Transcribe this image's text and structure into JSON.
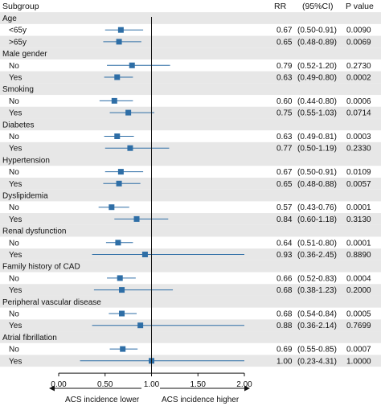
{
  "chart_data": {
    "type": "forest",
    "headers": {
      "subgroup": "Subgroup",
      "rr": "RR",
      "ci": "(95%CI)",
      "p": "P value"
    },
    "x_axis": {
      "range": [
        0,
        2
      ],
      "ticks": [
        0,
        0.5,
        1,
        1.5,
        2
      ],
      "tick_labels": [
        "0.00",
        "0.50",
        "1.00",
        "1.50",
        "2.00"
      ],
      "reference_line": 1
    },
    "direction_labels": {
      "left": "ACS incidence lower",
      "right": "ACS incidence higher"
    },
    "colors": {
      "marker": "#2e6ea6",
      "band": "#e7e7e7",
      "axis": "#111111"
    },
    "groups": [
      {
        "name": "Age",
        "rows": [
          {
            "label": "<65y",
            "rr": 0.67,
            "lo": 0.5,
            "hi": 0.91,
            "rr_text": "0.67",
            "ci_text": "(0.50-0.91)",
            "p_text": "0.0090"
          },
          {
            "label": ">65y",
            "rr": 0.65,
            "lo": 0.48,
            "hi": 0.89,
            "rr_text": "0.65",
            "ci_text": "(0.48-0.89)",
            "p_text": "0.0069"
          }
        ]
      },
      {
        "name": "Male gender",
        "rows": [
          {
            "label": "No",
            "rr": 0.79,
            "lo": 0.52,
            "hi": 1.2,
            "rr_text": "0.79",
            "ci_text": "(0.52-1.20)",
            "p_text": "0.2730"
          },
          {
            "label": "Yes",
            "rr": 0.63,
            "lo": 0.49,
            "hi": 0.8,
            "rr_text": "0.63",
            "ci_text": "(0.49-0.80)",
            "p_text": "0.0002"
          }
        ]
      },
      {
        "name": "Smoking",
        "rows": [
          {
            "label": "No",
            "rr": 0.6,
            "lo": 0.44,
            "hi": 0.8,
            "rr_text": "0.60",
            "ci_text": "(0.44-0.80)",
            "p_text": "0.0006"
          },
          {
            "label": "Yes",
            "rr": 0.75,
            "lo": 0.55,
            "hi": 1.03,
            "rr_text": "0.75",
            "ci_text": "(0.55-1.03)",
            "p_text": "0.0714"
          }
        ]
      },
      {
        "name": "Diabetes",
        "rows": [
          {
            "label": "No",
            "rr": 0.63,
            "lo": 0.49,
            "hi": 0.81,
            "rr_text": "0.63",
            "ci_text": "(0.49-0.81)",
            "p_text": "0.0003"
          },
          {
            "label": "Yes",
            "rr": 0.77,
            "lo": 0.5,
            "hi": 1.19,
            "rr_text": "0.77",
            "ci_text": "(0.50-1.19)",
            "p_text": "0.2330"
          }
        ]
      },
      {
        "name": "Hypertension",
        "rows": [
          {
            "label": "No",
            "rr": 0.67,
            "lo": 0.5,
            "hi": 0.91,
            "rr_text": "0.67",
            "ci_text": "(0.50-0.91)",
            "p_text": "0.0109"
          },
          {
            "label": "Yes",
            "rr": 0.65,
            "lo": 0.48,
            "hi": 0.88,
            "rr_text": "0.65",
            "ci_text": "(0.48-0.88)",
            "p_text": "0.0057"
          }
        ]
      },
      {
        "name": "Dyslipidemia",
        "rows": [
          {
            "label": "No",
            "rr": 0.57,
            "lo": 0.43,
            "hi": 0.76,
            "rr_text": "0.57",
            "ci_text": "(0.43-0.76)",
            "p_text": "0.0001"
          },
          {
            "label": "Yes",
            "rr": 0.84,
            "lo": 0.6,
            "hi": 1.18,
            "rr_text": "0.84",
            "ci_text": "(0.60-1.18)",
            "p_text": "0.3130"
          }
        ]
      },
      {
        "name": "Renal dysfunction",
        "rows": [
          {
            "label": "No",
            "rr": 0.64,
            "lo": 0.51,
            "hi": 0.8,
            "rr_text": "0.64",
            "ci_text": "(0.51-0.80)",
            "p_text": "0.0001"
          },
          {
            "label": "Yes",
            "rr": 0.93,
            "lo": 0.36,
            "hi": 2.45,
            "rr_text": "0.93",
            "ci_text": "(0.36-2.45)",
            "p_text": "0.8890"
          }
        ]
      },
      {
        "name": "Family history of CAD",
        "rows": [
          {
            "label": "No",
            "rr": 0.66,
            "lo": 0.52,
            "hi": 0.83,
            "rr_text": "0.66",
            "ci_text": "(0.52-0.83)",
            "p_text": "0.0004"
          },
          {
            "label": "Yes",
            "rr": 0.68,
            "lo": 0.38,
            "hi": 1.23,
            "rr_text": "0.68",
            "ci_text": "(0.38-1.23)",
            "p_text": "0.2000"
          }
        ]
      },
      {
        "name": "Peripheral vascular disease",
        "rows": [
          {
            "label": "No",
            "rr": 0.68,
            "lo": 0.54,
            "hi": 0.84,
            "rr_text": "0.68",
            "ci_text": "(0.54-0.84)",
            "p_text": "0.0005"
          },
          {
            "label": "Yes",
            "rr": 0.88,
            "lo": 0.36,
            "hi": 2.14,
            "rr_text": "0.88",
            "ci_text": "(0.36-2.14)",
            "p_text": "0.7699"
          }
        ]
      },
      {
        "name": "Atrial fibrillation",
        "rows": [
          {
            "label": "No",
            "rr": 0.69,
            "lo": 0.55,
            "hi": 0.85,
            "rr_text": "0.69",
            "ci_text": "(0.55-0.85)",
            "p_text": "0.0007"
          },
          {
            "label": "Yes",
            "rr": 1.0,
            "lo": 0.23,
            "hi": 4.31,
            "rr_text": "1.00",
            "ci_text": "(0.23-4.31)",
            "p_text": "1.0000"
          }
        ]
      }
    ]
  }
}
